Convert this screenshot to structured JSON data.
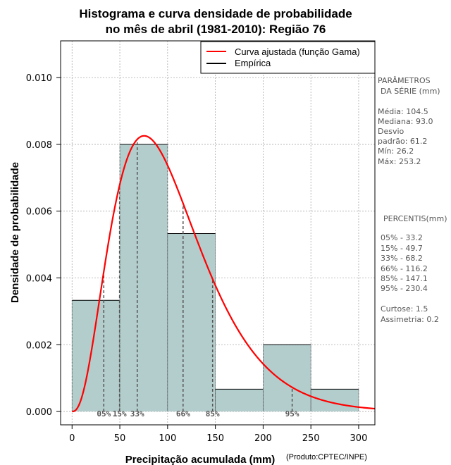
{
  "chart_data": {
    "type": "bar",
    "title_lines": [
      "Histograma e curva densidade de probabilidade",
      "no mês de abril (1981-2010): Região 76"
    ],
    "xlabel": "Precipitação acumulada (mm)",
    "ylabel": "Densidade de probabilidade",
    "credit": "(Produto:CPTEC/INPE)",
    "xlim": [
      -12,
      317
    ],
    "ylim": [
      -0.0004,
      0.0111
    ],
    "x_ticks": [
      0,
      50,
      100,
      150,
      200,
      250,
      300
    ],
    "x_tick_labels": [
      "0",
      "50",
      "100",
      "150",
      "200",
      "250",
      "300"
    ],
    "y_ticks": [
      0,
      0.002,
      0.004,
      0.006,
      0.008,
      0.01
    ],
    "y_tick_labels": [
      "0.000",
      "0.002",
      "0.004",
      "0.006",
      "0.008",
      "0.010"
    ],
    "grid": true,
    "legend_position": "top-right",
    "legend": [
      {
        "label": "Curva ajustada (função Gama)",
        "color": "#ff0000"
      },
      {
        "label": "Empírica",
        "color": "#000000"
      }
    ],
    "bins": [
      {
        "x0": 0,
        "x1": 50,
        "density": 0.00333
      },
      {
        "x0": 50,
        "x1": 100,
        "density": 0.008
      },
      {
        "x0": 100,
        "x1": 150,
        "density": 0.00533
      },
      {
        "x0": 150,
        "x1": 200,
        "density": 0.000667
      },
      {
        "x0": 200,
        "x1": 250,
        "density": 0.002
      },
      {
        "x0": 250,
        "x1": 300,
        "density": 0.000667
      }
    ],
    "gamma_fit": {
      "shape": 3.6,
      "mean": 104.5,
      "color": "#ff0000"
    },
    "percentile_lines": [
      {
        "label": "05%",
        "x": 33.2
      },
      {
        "label": "15%",
        "x": 49.7
      },
      {
        "label": "33%",
        "x": 68.2
      },
      {
        "label": "66%",
        "x": 116.2
      },
      {
        "label": "85%",
        "x": 147.1
      },
      {
        "label": "95%",
        "x": 230.4
      }
    ],
    "colors": {
      "bar_fill": "#b3cccc",
      "grid": "#aaaaaa",
      "percentile_line": "#555555"
    }
  },
  "side_panel": {
    "params_title_1": "PARÂMETROS",
    "params_title_2": "DA SÉRIE (mm)",
    "params": [
      "Média:  104.5",
      "Mediana:  93.0",
      "Desvio",
      "padrão:  61.2",
      "Mín:  26.2",
      "Máx:  253.2"
    ],
    "percentis_title": "PERCENTIS(mm)",
    "percentis": [
      "05% -  33.2",
      "15% -  49.7",
      "33% -  68.2",
      "66% -  116.2",
      "85% -  147.1",
      "95% -  230.4"
    ],
    "extra": [
      "Curtose:  1.5",
      "Assimetria:  0.2"
    ]
  }
}
